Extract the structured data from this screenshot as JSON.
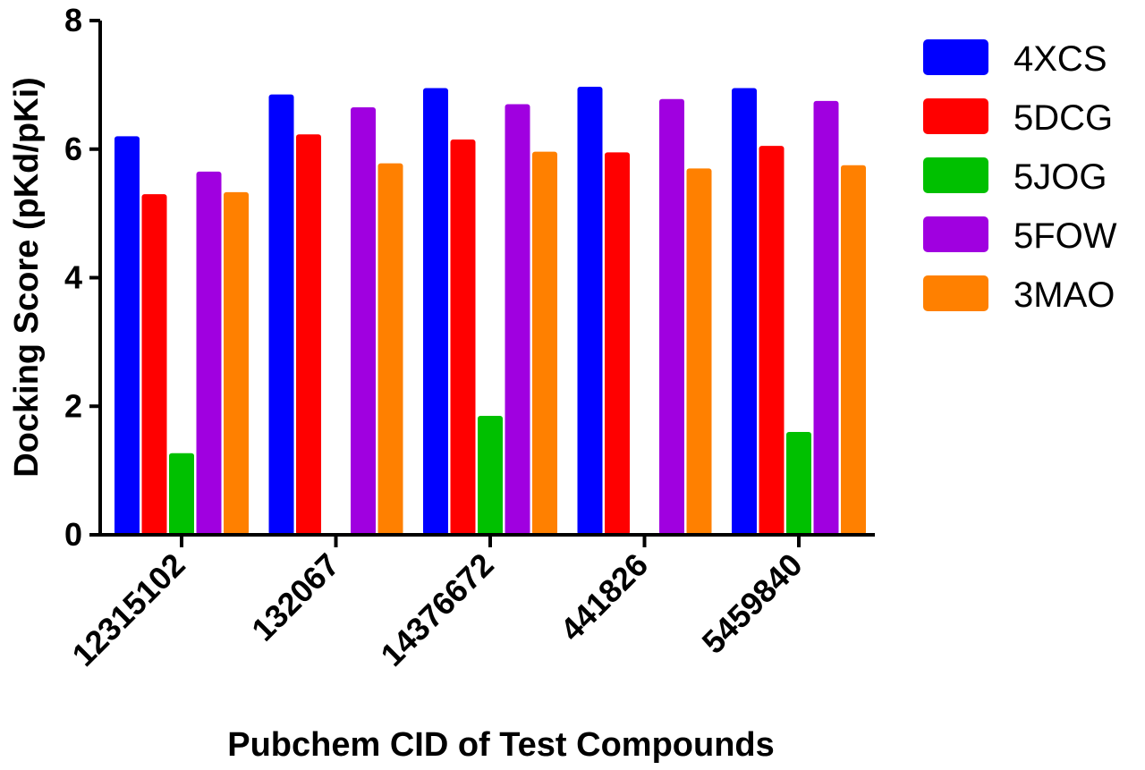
{
  "chart_data": {
    "type": "bar",
    "title": "",
    "xlabel": "Pubchem CID of Test Compounds",
    "ylabel": "Docking Score (pKd/pKi)",
    "ylim": [
      0,
      8
    ],
    "yticks": [
      "0",
      "2",
      "4",
      "6",
      "8"
    ],
    "categories": [
      "12315102",
      "132067",
      "14376672",
      "441826",
      "5459840"
    ],
    "legend_position": "top-right",
    "grid": false,
    "series": [
      {
        "name": "4XCS",
        "color": "#0000ff",
        "values": [
          6.2,
          6.85,
          6.95,
          6.97,
          6.95
        ]
      },
      {
        "name": "5DCG",
        "color": "#ff0000",
        "values": [
          5.3,
          6.23,
          6.15,
          5.95,
          6.05
        ]
      },
      {
        "name": "5JOG",
        "color": "#00c000",
        "values": [
          1.27,
          null,
          1.85,
          null,
          1.6
        ]
      },
      {
        "name": "5FOW",
        "color": "#a000e0",
        "values": [
          5.65,
          6.65,
          6.7,
          6.78,
          6.75
        ]
      },
      {
        "name": "3MAO",
        "color": "#ff8000",
        "values": [
          5.33,
          5.78,
          5.96,
          5.7,
          5.75
        ]
      }
    ]
  }
}
